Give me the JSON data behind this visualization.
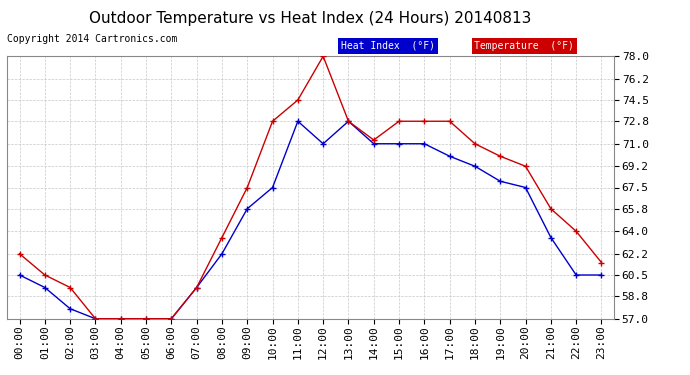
{
  "title": "Outdoor Temperature vs Heat Index (24 Hours) 20140813",
  "copyright": "Copyright 2014 Cartronics.com",
  "background_color": "#ffffff",
  "plot_bg_color": "#ffffff",
  "grid_color": "#c8c8c8",
  "ylim": [
    57.0,
    78.0
  ],
  "yticks": [
    57.0,
    58.8,
    60.5,
    62.2,
    64.0,
    65.8,
    67.5,
    69.2,
    71.0,
    72.8,
    74.5,
    76.2,
    78.0
  ],
  "hours": [
    "00:00",
    "01:00",
    "02:00",
    "03:00",
    "04:00",
    "05:00",
    "06:00",
    "07:00",
    "08:00",
    "09:00",
    "10:00",
    "11:00",
    "12:00",
    "13:00",
    "14:00",
    "15:00",
    "16:00",
    "17:00",
    "18:00",
    "19:00",
    "20:00",
    "21:00",
    "22:00",
    "23:00"
  ],
  "heat_index": [
    60.5,
    59.5,
    57.8,
    57.0,
    57.0,
    57.0,
    57.0,
    59.5,
    62.2,
    65.8,
    67.5,
    72.8,
    71.0,
    72.8,
    71.0,
    71.0,
    71.0,
    70.0,
    69.2,
    68.0,
    67.5,
    63.5,
    60.5,
    60.5
  ],
  "temperature": [
    62.2,
    60.5,
    59.5,
    57.0,
    57.0,
    57.0,
    57.0,
    59.5,
    63.5,
    67.5,
    72.8,
    74.5,
    78.0,
    72.8,
    71.3,
    72.8,
    72.8,
    72.8,
    71.0,
    70.0,
    69.2,
    65.8,
    64.0,
    61.5
  ],
  "heat_index_color": "#0000cc",
  "temperature_color": "#cc0000",
  "legend_hi_bg": "#0000cc",
  "legend_temp_bg": "#cc0000",
  "legend_hi_label": "Heat Index  (°F)",
  "legend_temp_label": "Temperature  (°F)",
  "title_fontsize": 11,
  "tick_fontsize": 8,
  "copyright_fontsize": 7
}
